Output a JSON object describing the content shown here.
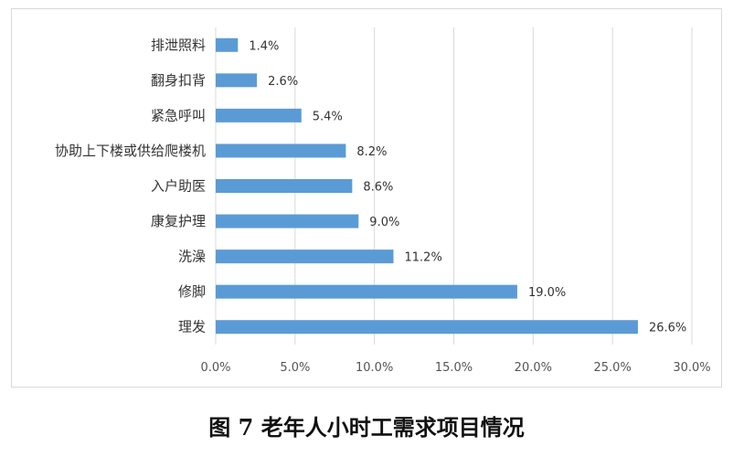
{
  "chart_data": {
    "type": "bar",
    "orientation": "horizontal",
    "categories": [
      "排泄照料",
      "翻身扣背",
      "紧急呼叫",
      "协助上下楼或供给爬楼机",
      "入户助医",
      "康复护理",
      "洗澡",
      "修脚",
      "理发"
    ],
    "values": [
      1.4,
      2.6,
      5.4,
      8.2,
      8.6,
      9.0,
      11.2,
      19.0,
      26.6
    ],
    "value_labels": [
      "1.4%",
      "2.6%",
      "5.4%",
      "8.2%",
      "8.6%",
      "9.0%",
      "11.2%",
      "19.0%",
      "26.6%"
    ],
    "x_ticks": [
      "0.0%",
      "5.0%",
      "10.0%",
      "15.0%",
      "20.0%",
      "25.0%",
      "30.0%"
    ],
    "xlim": [
      0,
      30
    ],
    "grid": "vertical",
    "bar_color": "#5b9bd5",
    "grid_color": "#d9d9d9"
  },
  "caption": "图 7  老年人小时工需求项目情况"
}
